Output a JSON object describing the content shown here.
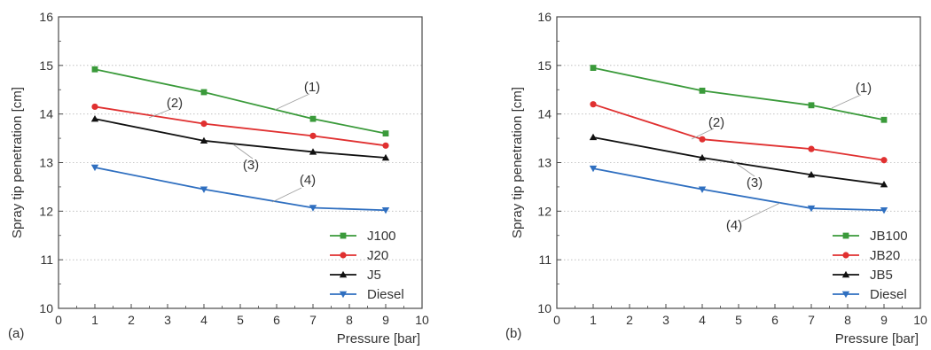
{
  "chart_data": [
    {
      "type": "line",
      "panel_label": "(a)",
      "xlabel": "Pressure [bar]",
      "ylabel": "Spray tip penetration [cm]",
      "xlim": [
        0,
        10
      ],
      "ylim": [
        10,
        16
      ],
      "xticks": [
        "0",
        "1",
        "2",
        "3",
        "4",
        "5",
        "6",
        "7",
        "8",
        "9",
        "10"
      ],
      "yticks": [
        "10",
        "11",
        "12",
        "13",
        "14",
        "15",
        "16"
      ],
      "grid": true,
      "legend_position": "bottom-right",
      "x": [
        1,
        4,
        7,
        9
      ],
      "series": [
        {
          "name": "J100",
          "values": [
            14.92,
            14.45,
            13.9,
            13.6
          ],
          "color": "#3a9a3a",
          "marker": "square"
        },
        {
          "name": "J20",
          "values": [
            14.15,
            13.8,
            13.55,
            13.35
          ],
          "color": "#e03030",
          "marker": "circle"
        },
        {
          "name": "J5",
          "values": [
            13.9,
            13.45,
            13.22,
            13.1
          ],
          "color": "#111111",
          "marker": "triangle-up"
        },
        {
          "name": "Diesel",
          "values": [
            12.9,
            12.45,
            12.07,
            12.02
          ],
          "color": "#2f6fc0",
          "marker": "triangle-down"
        }
      ],
      "annotations": [
        "(1)",
        "(2)",
        "(3)",
        "(4)"
      ]
    },
    {
      "type": "line",
      "panel_label": "(b)",
      "xlabel": "Pressure [bar]",
      "ylabel": "Spray tip penetration [cm]",
      "xlim": [
        0,
        10
      ],
      "ylim": [
        10,
        16
      ],
      "xticks": [
        "0",
        "1",
        "2",
        "3",
        "4",
        "5",
        "6",
        "7",
        "8",
        "9",
        "10"
      ],
      "yticks": [
        "10",
        "11",
        "12",
        "13",
        "14",
        "15",
        "16"
      ],
      "grid": true,
      "legend_position": "bottom-right",
      "x": [
        1,
        4,
        7,
        9
      ],
      "series": [
        {
          "name": "JB100",
          "values": [
            14.95,
            14.48,
            14.18,
            13.88
          ],
          "color": "#3a9a3a",
          "marker": "square"
        },
        {
          "name": "JB20",
          "values": [
            14.2,
            13.48,
            13.28,
            13.05
          ],
          "color": "#e03030",
          "marker": "circle"
        },
        {
          "name": "JB5",
          "values": [
            13.52,
            13.1,
            12.75,
            12.55
          ],
          "color": "#111111",
          "marker": "triangle-up"
        },
        {
          "name": "Diesel",
          "values": [
            12.88,
            12.45,
            12.06,
            12.02
          ],
          "color": "#2f6fc0",
          "marker": "triangle-down"
        }
      ],
      "annotations": [
        "(1)",
        "(2)",
        "(3)",
        "(4)"
      ]
    }
  ]
}
